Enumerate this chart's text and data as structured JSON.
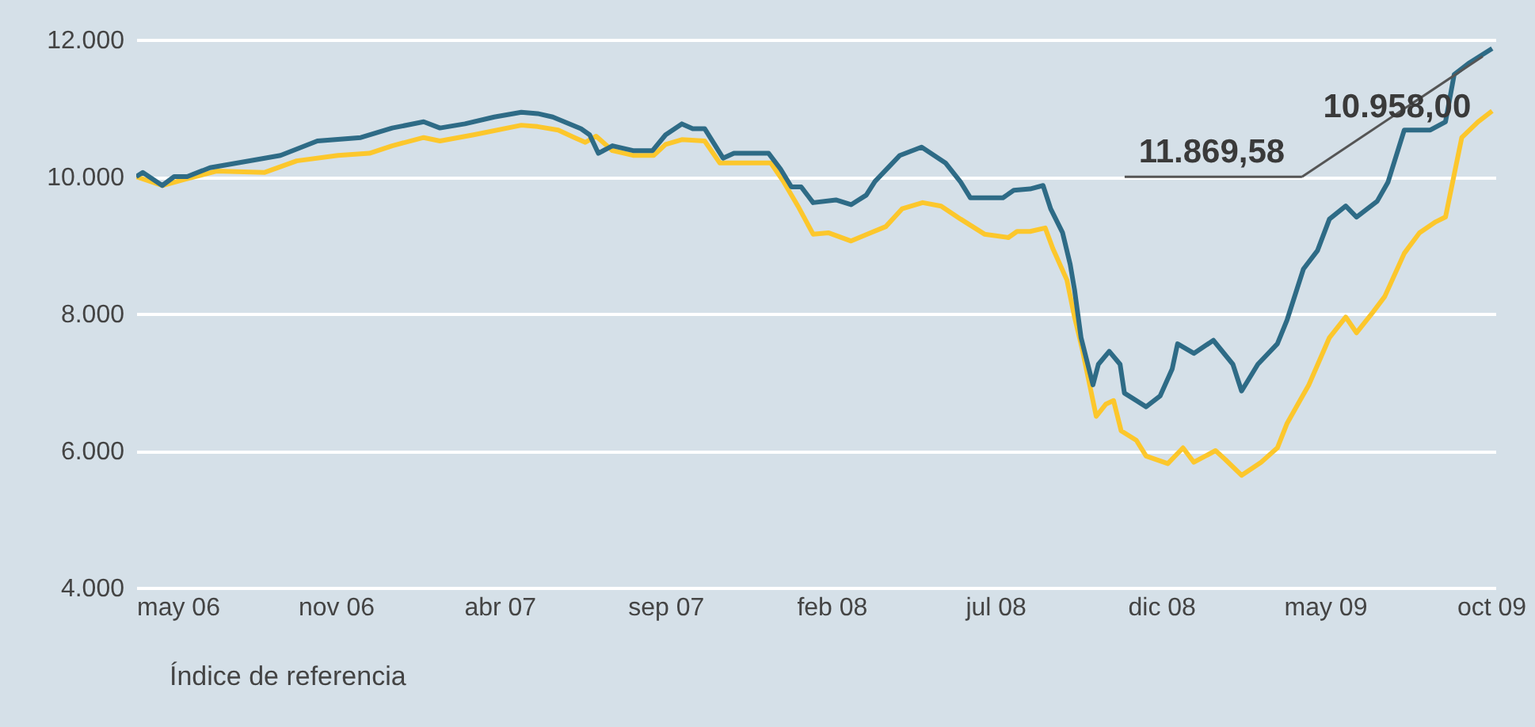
{
  "chart_data": {
    "type": "line",
    "xlim": [
      "2006-05-01",
      "2009-10-05"
    ],
    "ylim": [
      4000,
      12000
    ],
    "yticks": [
      {
        "value": 4000,
        "label": "4.000"
      },
      {
        "value": 6000,
        "label": "6.000"
      },
      {
        "value": 8000,
        "label": "8.000"
      },
      {
        "value": 10000,
        "label": "10.000"
      },
      {
        "value": 12000,
        "label": "12.000"
      }
    ],
    "xticks": [
      {
        "value": "2006-05-01",
        "label": "may 06"
      },
      {
        "value": "2006-11-01",
        "label": "nov 06"
      },
      {
        "value": "2007-04-01",
        "label": "abr 07"
      },
      {
        "value": "2007-09-01",
        "label": "sep 07"
      },
      {
        "value": "2008-02-01",
        "label": "feb 08"
      },
      {
        "value": "2008-07-01",
        "label": "jul 08"
      },
      {
        "value": "2008-12-01",
        "label": "dic 08"
      },
      {
        "value": "2009-05-01",
        "label": "may 09"
      },
      {
        "value": "2009-10-01",
        "label": "oct 09"
      }
    ],
    "grid": "y",
    "legend": "bottom",
    "line_style": "solid",
    "series": [
      {
        "color": "#fcc72c",
        "x": [
          "2006-05-01",
          "2006-05-25",
          "2006-06-15",
          "2006-07-14",
          "2006-08-27",
          "2006-09-26",
          "2006-11-03",
          "2006-12-02",
          "2006-12-23",
          "2007-01-21",
          "2007-02-05",
          "2007-03-08",
          "2007-04-21",
          "2007-05-06",
          "2007-05-25",
          "2007-06-09",
          "2007-06-19",
          "2007-06-29",
          "2007-07-14",
          "2007-08-02",
          "2007-08-21",
          "2007-09-01",
          "2007-09-16",
          "2007-10-07",
          "2007-10-21",
          "2007-11-08",
          "2007-12-07",
          "2007-12-19",
          "2008-01-01",
          "2008-01-15",
          "2008-01-29",
          "2008-02-19",
          "2008-03-08",
          "2008-03-22",
          "2008-04-06",
          "2008-04-25",
          "2008-05-12",
          "2008-05-30",
          "2008-06-21",
          "2008-07-13",
          "2008-07-21",
          "2008-08-02",
          "2008-08-16",
          "2008-08-23",
          "2008-09-05",
          "2008-09-12",
          "2008-09-19",
          "2008-10-02",
          "2008-10-11",
          "2008-10-18",
          "2008-10-25",
          "2008-11-08",
          "2008-11-17",
          "2008-12-07",
          "2008-12-21",
          "2008-12-31",
          "2009-01-20",
          "2009-01-29",
          "2009-02-13",
          "2009-03-03",
          "2009-03-18",
          "2009-03-27",
          "2009-04-16",
          "2009-05-05",
          "2009-05-20",
          "2009-05-30",
          "2009-06-14",
          "2009-06-25",
          "2009-07-13",
          "2009-07-27",
          "2009-08-11",
          "2009-08-20",
          "2009-08-28",
          "2009-09-04",
          "2009-09-19",
          "2009-10-02"
        ],
        "values": [
          10000,
          9870,
          9960,
          10080,
          10060,
          10230,
          10310,
          10340,
          10450,
          10570,
          10520,
          10610,
          10750,
          10730,
          10680,
          10570,
          10500,
          10590,
          10380,
          10310,
          10310,
          10470,
          10540,
          10520,
          10200,
          10200,
          10200,
          9920,
          9570,
          9160,
          9180,
          9060,
          9180,
          9270,
          9530,
          9620,
          9570,
          9380,
          9160,
          9110,
          9200,
          9200,
          9250,
          8950,
          8490,
          7950,
          7490,
          6500,
          6680,
          6730,
          6290,
          6150,
          5920,
          5810,
          6040,
          5830,
          6000,
          5870,
          5640,
          5830,
          6040,
          6400,
          6960,
          7650,
          7950,
          7720,
          8020,
          8250,
          8880,
          9180,
          9340,
          9410,
          10030,
          10570,
          10800,
          10958
        ]
      },
      {
        "name": "Índice de referencia",
        "color": "#2e6b86",
        "x": [
          "2006-05-01",
          "2006-05-07",
          "2006-05-25",
          "2006-06-05",
          "2006-06-17",
          "2006-07-08",
          "2006-08-17",
          "2006-09-11",
          "2006-10-15",
          "2006-11-24",
          "2006-12-23",
          "2007-01-21",
          "2007-02-05",
          "2007-02-28",
          "2007-03-27",
          "2007-04-21",
          "2007-05-06",
          "2007-05-20",
          "2007-06-15",
          "2007-06-23",
          "2007-07-01",
          "2007-07-14",
          "2007-08-02",
          "2007-08-20",
          "2007-09-01",
          "2007-09-16",
          "2007-09-26",
          "2007-10-07",
          "2007-10-24",
          "2007-11-03",
          "2007-12-05",
          "2007-12-16",
          "2007-12-26",
          "2008-01-04",
          "2008-01-15",
          "2008-02-05",
          "2008-02-19",
          "2008-03-04",
          "2008-03-12",
          "2008-04-04",
          "2008-04-24",
          "2008-05-16",
          "2008-05-30",
          "2008-06-08",
          "2008-07-08",
          "2008-07-18",
          "2008-08-02",
          "2008-08-14",
          "2008-08-21",
          "2008-09-01",
          "2008-09-08",
          "2008-09-12",
          "2008-09-18",
          "2008-09-29",
          "2008-10-04",
          "2008-10-14",
          "2008-10-24",
          "2008-10-28",
          "2008-11-17",
          "2008-11-30",
          "2008-12-11",
          "2008-12-16",
          "2008-12-31",
          "2009-01-18",
          "2009-02-05",
          "2009-02-13",
          "2009-02-28",
          "2009-03-18",
          "2009-03-27",
          "2009-04-11",
          "2009-04-24",
          "2009-05-05",
          "2009-05-20",
          "2009-05-30",
          "2009-06-18",
          "2009-06-28",
          "2009-07-13",
          "2009-08-06",
          "2009-08-20",
          "2009-08-28",
          "2009-09-10",
          "2009-10-02"
        ],
        "values": [
          10000,
          10060,
          9870,
          10000,
          10000,
          10130,
          10240,
          10310,
          10520,
          10570,
          10710,
          10800,
          10710,
          10770,
          10870,
          10940,
          10920,
          10870,
          10700,
          10610,
          10340,
          10450,
          10380,
          10380,
          10610,
          10770,
          10700,
          10700,
          10270,
          10340,
          10340,
          10110,
          9850,
          9850,
          9620,
          9660,
          9590,
          9730,
          9930,
          10310,
          10430,
          10200,
          9920,
          9690,
          9690,
          9800,
          9820,
          9870,
          9530,
          9180,
          8720,
          8350,
          7650,
          6960,
          7260,
          7450,
          7260,
          6840,
          6640,
          6800,
          7190,
          7560,
          7420,
          7610,
          7260,
          6870,
          7260,
          7560,
          7910,
          8650,
          8920,
          9380,
          9570,
          9410,
          9640,
          9920,
          10680,
          10680,
          10800,
          11490,
          11650,
          11869.58
        ]
      }
    ],
    "annotations": [
      {
        "text": "11.869,58",
        "x": "2009-10-02",
        "y": 11869.58
      },
      {
        "text": "10.958,00",
        "x": "2009-10-02",
        "y": 10958
      }
    ]
  }
}
